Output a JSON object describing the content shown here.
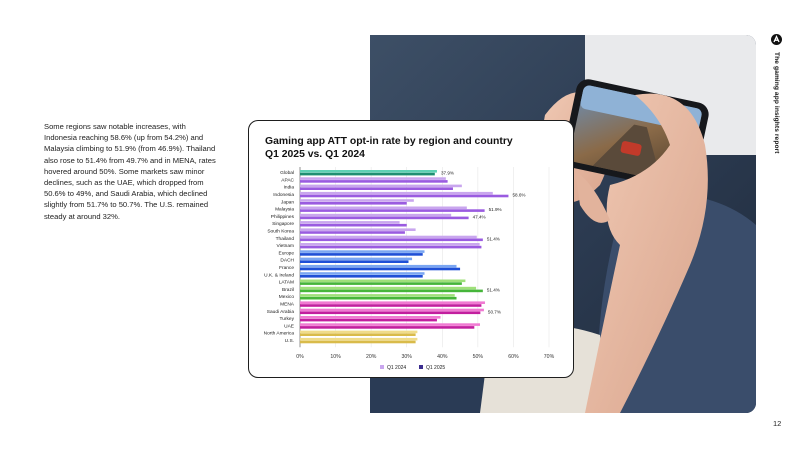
{
  "side_title": "The gaming app insights report",
  "body_text": "Some regions saw notable increases, with Indonesia reaching 58.6% (up from 54.2%) and Malaysia climbing to 51.9% (from 46.9%). Thailand also rose to 51.4% from 49.7% and in MENA, rates hovered around 50%. Some markets saw minor declines, such as the UAE, which dropped from 50.6% to 49%, and Saudi Arabia, which declined slightly from 51.7% to 50.7%. The U.S. remained steady at around 32%.",
  "page_number": "12",
  "icons": {
    "logo": "logo-icon",
    "photo": "phone-gaming-photo"
  },
  "chart_data": {
    "type": "bar",
    "orientation": "horizontal",
    "title": "Gaming app ATT opt-in rate by region and country\nQ1 2025 vs. Q1 2024",
    "categories": [
      "Global",
      "APAC",
      "India",
      "Indonesia",
      "Japan",
      "Malaysia",
      "Philippines",
      "Singapore",
      "South Korea",
      "Thailand",
      "Vietnam",
      "Europe",
      "DACH",
      "France",
      "U.K. & Ireland",
      "LATAM",
      "Brazil",
      "Mexico",
      "MENA",
      "Saudi Arabia",
      "Turkey",
      "UAE",
      "North America",
      "U.S."
    ],
    "groups": [
      "global",
      "apac",
      "apac",
      "apac",
      "apac",
      "apac",
      "apac",
      "apac",
      "apac",
      "apac",
      "apac",
      "europe",
      "europe",
      "europe",
      "europe",
      "latam",
      "latam",
      "latam",
      "mena",
      "mena",
      "mena",
      "mena",
      "na",
      "na"
    ],
    "series": [
      {
        "name": "Q1 2024",
        "values": [
          38.5,
          41,
          45.5,
          54.2,
          32,
          46.9,
          42.5,
          28,
          32.5,
          49.7,
          50.5,
          35,
          31.5,
          44,
          35,
          46.5,
          49.5,
          43.5,
          52,
          51.7,
          39.5,
          50.6,
          33,
          33
        ]
      },
      {
        "name": "Q1 2025",
        "values": [
          37.9,
          41.5,
          43,
          58.6,
          30,
          51.9,
          47.4,
          30,
          29.5,
          51.4,
          51,
          34.5,
          30.5,
          45,
          34.5,
          45.5,
          51.4,
          44,
          51,
          50.7,
          38.5,
          49,
          32.5,
          32.5
        ]
      }
    ],
    "data_labels": [
      {
        "category": "Global",
        "text": "37.9%"
      },
      {
        "category": "Indonesia",
        "text": "58.6%"
      },
      {
        "category": "Malaysia",
        "text": "51.9%"
      },
      {
        "category": "Philippines",
        "text": "47.4%"
      },
      {
        "category": "Thailand",
        "text": "51.4%"
      },
      {
        "category": "Brazil",
        "text": "51.4%"
      },
      {
        "category": "Saudi Arabia",
        "text": "50.7%"
      }
    ],
    "xlim": [
      0,
      70
    ],
    "xticks": [
      "0%",
      "10%",
      "20%",
      "30%",
      "40%",
      "50%",
      "60%",
      "70%"
    ],
    "legend_position": "bottom",
    "colors": {
      "global": [
        "#5ed1b4",
        "#1f8f72"
      ],
      "apac": [
        "#c9a6ee",
        "#9a5be0"
      ],
      "europe": [
        "#7aa6f2",
        "#1f4fd6"
      ],
      "latam": [
        "#9fe07a",
        "#46b53a"
      ],
      "mena": [
        "#f07ad2",
        "#c21e9e"
      ],
      "na": [
        "#f0dc8a",
        "#d9bb4a"
      ],
      "legend": [
        "#c9a6ee",
        "#3b2d8f"
      ]
    }
  }
}
